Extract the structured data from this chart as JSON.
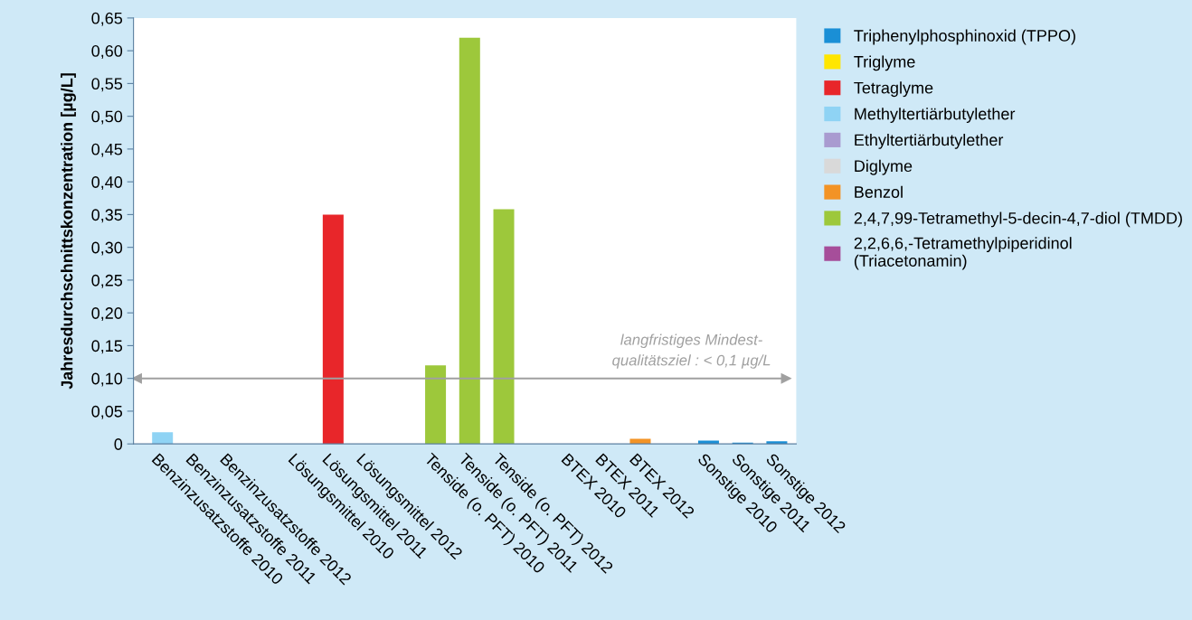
{
  "chart_data": {
    "type": "bar",
    "ylabel": "Jahresdurchschnittskonzentration [µg/L]",
    "categories": [
      "Benzinzusatzstoffe 2010",
      "Benzinzusatzstoffe 2011",
      "Benzinzusatzstoffe 2012",
      null,
      "Lösungsmittel 2010",
      "Lösungsmittel 2011",
      "Lösungsmittel 2012",
      null,
      "Tenside (o. PFT) 2010",
      "Tenside (o. PFT) 2011",
      "Tenside (o. PFT) 2012",
      null,
      "BTEX 2010",
      "BTEX 2011",
      "BTEX 2012",
      null,
      "Sonstige 2010",
      "Sonstige 2011",
      "Sonstige 2012"
    ],
    "series": [
      {
        "name": "Triphenylphosphinoxid (TPPO)",
        "color": "#1a8fd6",
        "values": [
          null,
          null,
          null,
          null,
          null,
          null,
          null,
          null,
          null,
          null,
          null,
          null,
          null,
          null,
          null,
          null,
          0.005,
          0.002,
          0.004
        ]
      },
      {
        "name": "Triglyme",
        "color": "#ffe600",
        "values": [
          null,
          null,
          null,
          null,
          null,
          null,
          null,
          null,
          null,
          null,
          null,
          null,
          null,
          null,
          null,
          null,
          null,
          null,
          null
        ]
      },
      {
        "name": "Tetraglyme",
        "color": "#e8262a",
        "values": [
          null,
          null,
          null,
          null,
          null,
          0.35,
          null,
          null,
          null,
          null,
          null,
          null,
          null,
          null,
          null,
          null,
          null,
          null,
          null
        ]
      },
      {
        "name": "Methyltertiärbutylether",
        "color": "#8fd3f4",
        "values": [
          0.018,
          null,
          null,
          null,
          null,
          null,
          null,
          null,
          null,
          null,
          null,
          null,
          null,
          null,
          null,
          null,
          null,
          null,
          null
        ]
      },
      {
        "name": "Ethyltertiärbutylether",
        "color": "#a99bd0",
        "values": [
          null,
          null,
          null,
          null,
          null,
          null,
          null,
          null,
          null,
          null,
          null,
          null,
          null,
          null,
          null,
          null,
          null,
          null,
          null
        ]
      },
      {
        "name": "Diglyme",
        "color": "#d9d9d9",
        "values": [
          null,
          null,
          null,
          null,
          null,
          null,
          null,
          null,
          null,
          null,
          null,
          null,
          null,
          null,
          null,
          null,
          null,
          null,
          null
        ]
      },
      {
        "name": "Benzol",
        "color": "#f39325",
        "values": [
          null,
          null,
          null,
          null,
          null,
          null,
          null,
          null,
          null,
          null,
          null,
          null,
          null,
          null,
          0.008,
          null,
          null,
          null,
          null
        ]
      },
      {
        "name": "2,4,7,99-Tetramethyl-5-decin-4,7-diol (TMDD)",
        "color": "#9dc83b",
        "values": [
          null,
          null,
          null,
          null,
          null,
          null,
          null,
          null,
          0.12,
          0.62,
          0.358,
          null,
          null,
          null,
          null,
          null,
          null,
          null,
          null
        ]
      },
      {
        "name": "2,2,6,6,-Tetramethylpiperidinol (Triacetonamin)",
        "color": "#a64e9a",
        "values": [
          null,
          null,
          null,
          null,
          null,
          null,
          null,
          null,
          null,
          null,
          null,
          null,
          null,
          null,
          null,
          null,
          null,
          null,
          null
        ]
      }
    ],
    "ylim": [
      0,
      0.65
    ],
    "yticks": [
      0,
      {
        "value": 0.05,
        "label": "0,05"
      },
      {
        "value": 0.1,
        "label": "0,10"
      },
      {
        "value": 0.15,
        "label": "0,15"
      },
      {
        "value": 0.2,
        "label": "0,20"
      },
      {
        "value": 0.25,
        "label": "0,25"
      },
      {
        "value": 0.3,
        "label": "0,30"
      },
      {
        "value": 0.35,
        "label": "0,35"
      },
      {
        "value": 0.4,
        "label": "0,40"
      },
      {
        "value": 0.45,
        "label": "0,45"
      },
      {
        "value": 0.5,
        "label": "0,50"
      },
      {
        "value": 0.55,
        "label": "0,55"
      },
      {
        "value": 0.6,
        "label": "0,60"
      },
      {
        "value": 0.65,
        "label": "0,65"
      }
    ],
    "ref_lines": [
      {
        "axis": "y",
        "value": 0.1,
        "label": "langfristiges Mindest-\nqualitätsziel : < 0,1 µg/L",
        "color": "#a0a0a0"
      }
    ],
    "grid": false,
    "legend": "right"
  }
}
